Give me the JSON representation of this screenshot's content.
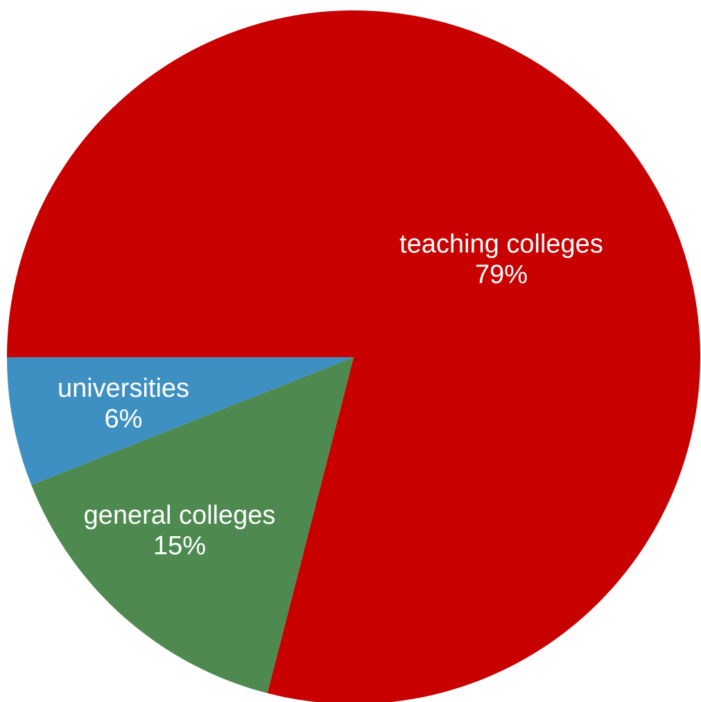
{
  "chart_data": {
    "type": "pie",
    "title": "",
    "slices": [
      {
        "name": "teaching colleges",
        "value": 79,
        "percent_label": "79%",
        "color": "#c80000"
      },
      {
        "name": "general colleges",
        "value": 15,
        "percent_label": "15%",
        "color": "#4e8a50"
      },
      {
        "name": "universities",
        "value": 6,
        "percent_label": "6%",
        "color": "#3f90c2"
      }
    ],
    "start_angle_note": "first slice starts at 9 o'clock going clockwise",
    "legend": "none",
    "labels_inside": true
  }
}
